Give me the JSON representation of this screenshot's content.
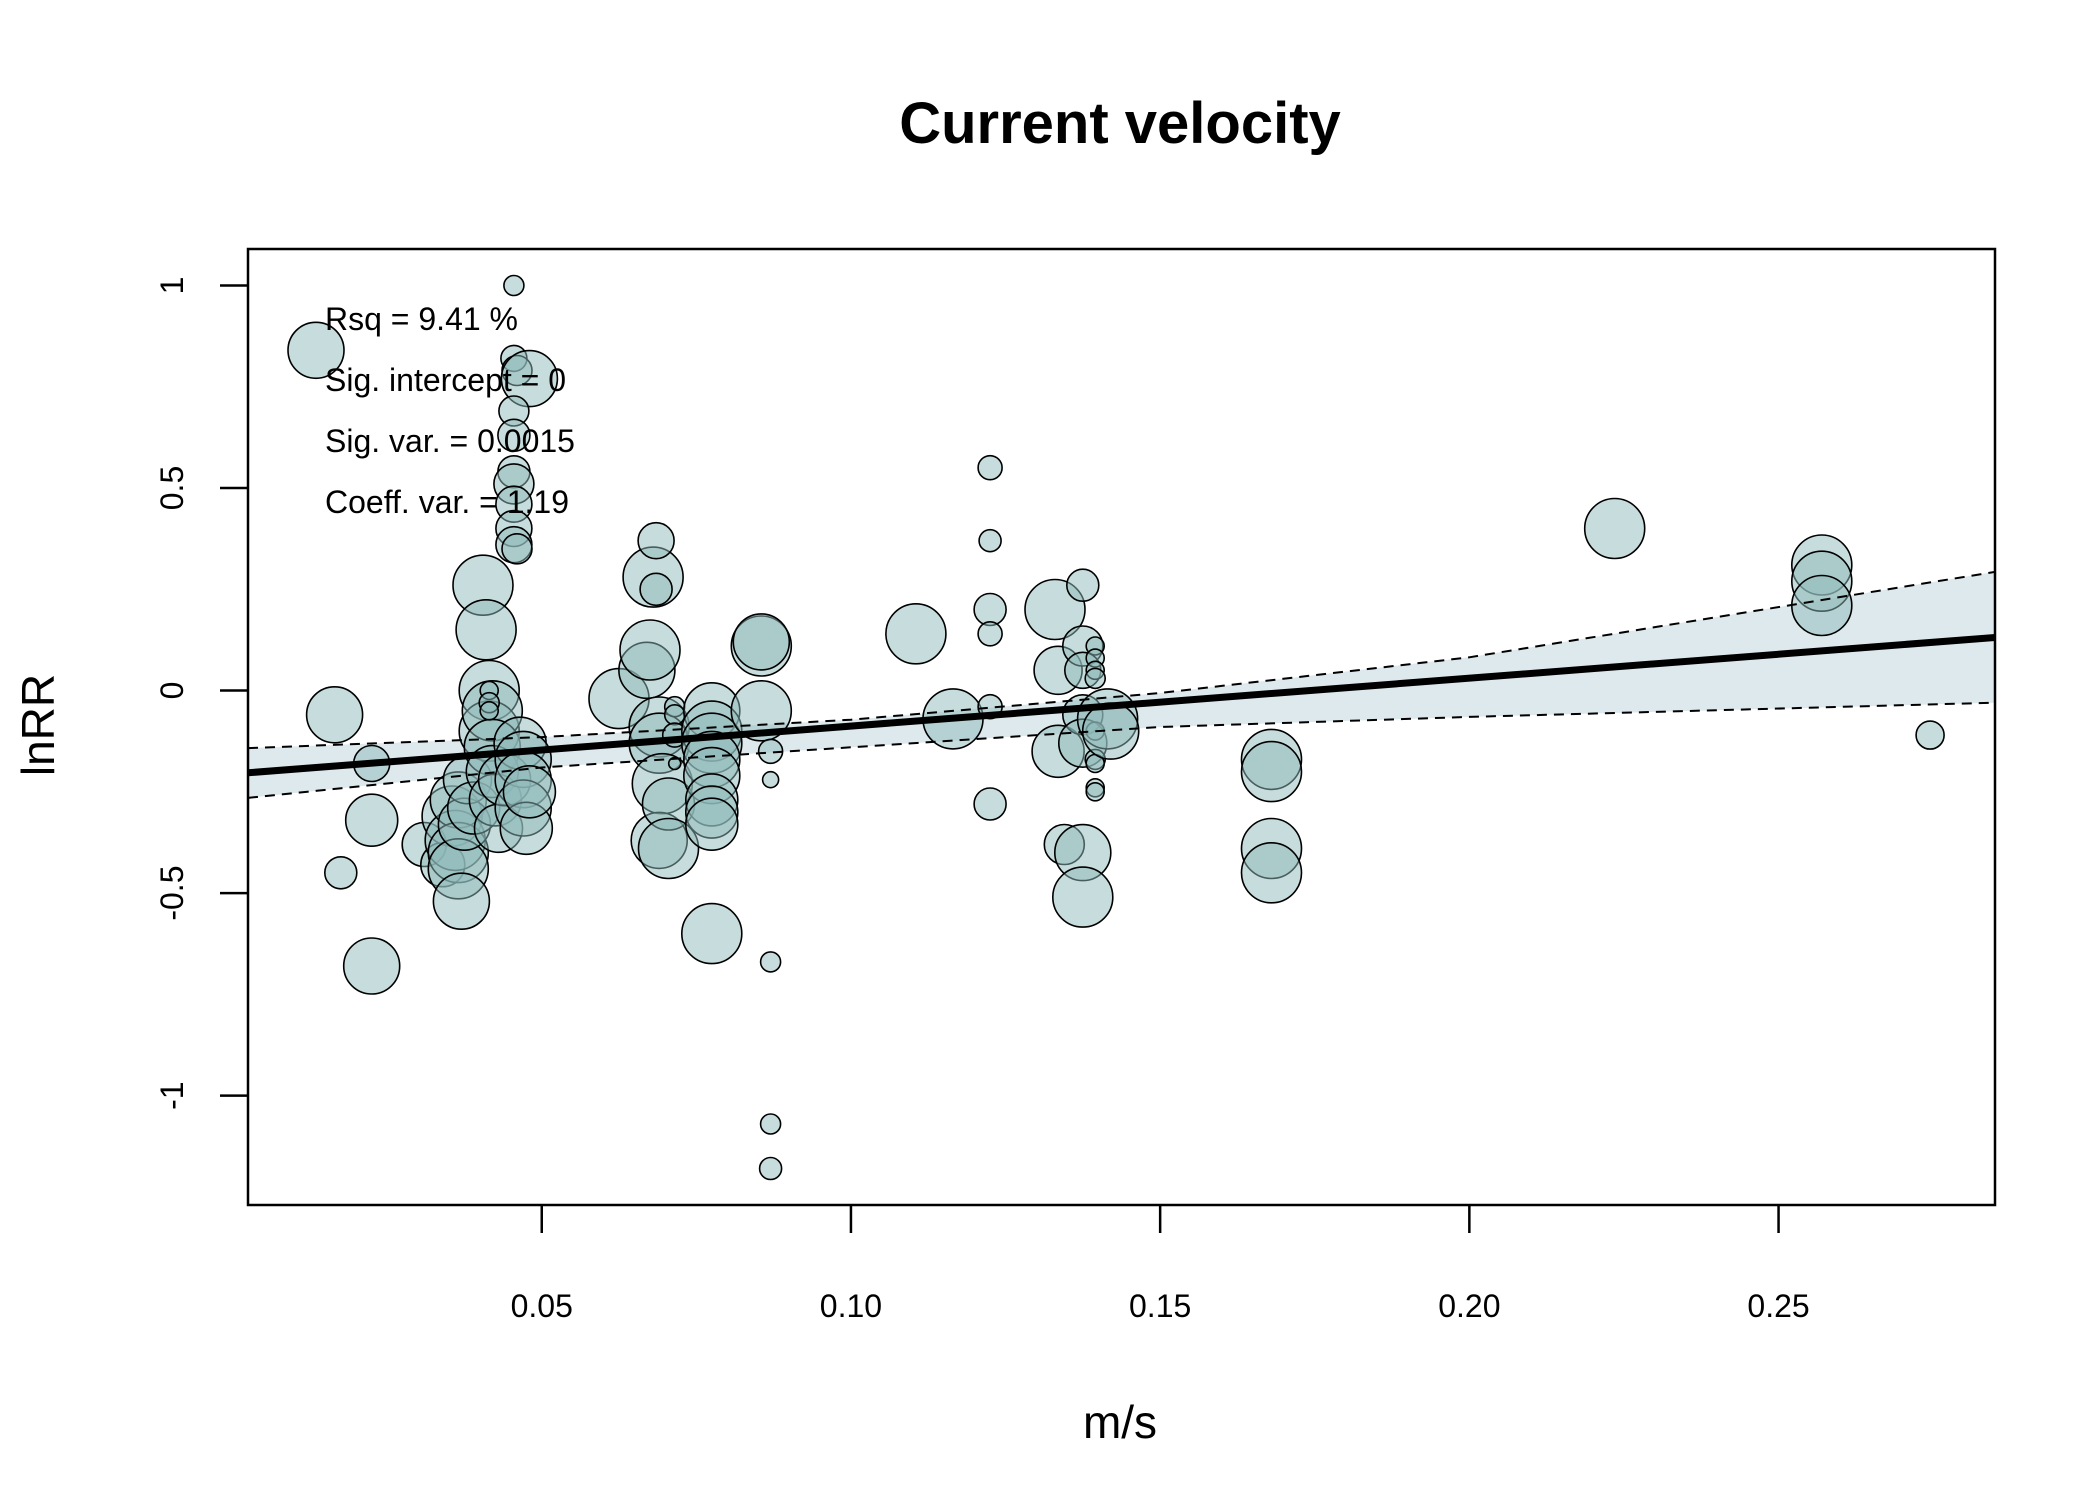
{
  "chart_data": {
    "type": "scatter",
    "title": "Current velocity",
    "xlabel": "m/s",
    "ylabel": "lnRR",
    "xlim": [
      0.0025,
      0.285
    ],
    "ylim": [
      -1.27,
      1.09
    ],
    "x_ticks": [
      0.05,
      0.1,
      0.15,
      0.2,
      0.25
    ],
    "x_tick_labels": [
      "0.05",
      "0.10",
      "0.15",
      "0.20",
      "0.25"
    ],
    "y_ticks": [
      -1,
      -0.5,
      0,
      0.5,
      1
    ],
    "y_tick_labels": [
      "-1",
      "-0.5",
      "0",
      "0.5",
      "1"
    ],
    "grid": false,
    "stats": [
      "Rsq = 9.41 %",
      "Sig. intercept = 0",
      "Sig. var. = 0.0015",
      "Coeff. var. = 1.19"
    ],
    "fit_line": {
      "x": [
        0.0025,
        0.285
      ],
      "y": [
        -0.203,
        0.131
      ]
    },
    "ci_upper": {
      "x": [
        0.0025,
        0.05,
        0.1,
        0.15,
        0.2,
        0.285
      ],
      "y": [
        -0.142,
        -0.115,
        -0.072,
        -0.006,
        0.082,
        0.293
      ]
    },
    "ci_lower": {
      "x": [
        0.0025,
        0.05,
        0.1,
        0.15,
        0.2,
        0.285
      ],
      "y": [
        -0.265,
        -0.19,
        -0.14,
        -0.09,
        -0.065,
        -0.03
      ]
    },
    "colors": {
      "point_fill": "#8fb9b9",
      "point_stroke": "#000000",
      "band_fill": "#dde9ec",
      "fit_line": "#000000"
    },
    "points": [
      {
        "x": 0.0135,
        "y": 0.84,
        "size": 28
      },
      {
        "x": 0.0165,
        "y": -0.06,
        "size": 28
      },
      {
        "x": 0.0175,
        "y": -0.45,
        "size": 16
      },
      {
        "x": 0.0225,
        "y": -0.18,
        "size": 18
      },
      {
        "x": 0.0225,
        "y": -0.32,
        "size": 26
      },
      {
        "x": 0.0225,
        "y": -0.68,
        "size": 28
      },
      {
        "x": 0.031,
        "y": -0.38,
        "size": 22
      },
      {
        "x": 0.034,
        "y": -0.43,
        "size": 22
      },
      {
        "x": 0.0355,
        "y": -0.31,
        "size": 30
      },
      {
        "x": 0.036,
        "y": -0.37,
        "size": 30
      },
      {
        "x": 0.0365,
        "y": -0.27,
        "size": 28
      },
      {
        "x": 0.0365,
        "y": -0.4,
        "size": 30
      },
      {
        "x": 0.0365,
        "y": -0.44,
        "size": 30
      },
      {
        "x": 0.037,
        "y": -0.52,
        "size": 28
      },
      {
        "x": 0.0375,
        "y": -0.33,
        "size": 26
      },
      {
        "x": 0.038,
        "y": -0.22,
        "size": 24
      },
      {
        "x": 0.039,
        "y": -0.29,
        "size": 26
      },
      {
        "x": 0.0405,
        "y": 0.26,
        "size": 30
      },
      {
        "x": 0.041,
        "y": 0.15,
        "size": 30
      },
      {
        "x": 0.0415,
        "y": 0.0,
        "size": 30
      },
      {
        "x": 0.0415,
        "y": -0.1,
        "size": 30
      },
      {
        "x": 0.042,
        "y": -0.05,
        "size": 30
      },
      {
        "x": 0.042,
        "y": -0.14,
        "size": 28
      },
      {
        "x": 0.042,
        "y": -0.2,
        "size": 26
      },
      {
        "x": 0.0425,
        "y": -0.27,
        "size": 26
      },
      {
        "x": 0.043,
        "y": -0.34,
        "size": 24
      },
      {
        "x": 0.044,
        "y": -0.22,
        "size": 26
      },
      {
        "x": 0.0415,
        "y": 0.0,
        "size": 9
      },
      {
        "x": 0.0415,
        "y": -0.03,
        "size": 10
      },
      {
        "x": 0.0415,
        "y": -0.05,
        "size": 9
      },
      {
        "x": 0.0455,
        "y": 1.0,
        "size": 10
      },
      {
        "x": 0.0455,
        "y": 0.82,
        "size": 13
      },
      {
        "x": 0.046,
        "y": 0.79,
        "size": 15
      },
      {
        "x": 0.048,
        "y": 0.77,
        "size": 28
      },
      {
        "x": 0.0455,
        "y": 0.69,
        "size": 15
      },
      {
        "x": 0.0455,
        "y": 0.63,
        "size": 16
      },
      {
        "x": 0.0455,
        "y": 0.54,
        "size": 16
      },
      {
        "x": 0.0455,
        "y": 0.51,
        "size": 20
      },
      {
        "x": 0.0455,
        "y": 0.46,
        "size": 18
      },
      {
        "x": 0.0455,
        "y": 0.4,
        "size": 18
      },
      {
        "x": 0.0455,
        "y": 0.36,
        "size": 18
      },
      {
        "x": 0.046,
        "y": 0.35,
        "size": 15
      },
      {
        "x": 0.0465,
        "y": -0.13,
        "size": 26
      },
      {
        "x": 0.047,
        "y": -0.17,
        "size": 28
      },
      {
        "x": 0.047,
        "y": -0.22,
        "size": 28
      },
      {
        "x": 0.047,
        "y": -0.29,
        "size": 28
      },
      {
        "x": 0.0475,
        "y": -0.34,
        "size": 26
      },
      {
        "x": 0.048,
        "y": -0.25,
        "size": 26
      },
      {
        "x": 0.0625,
        "y": -0.02,
        "size": 30
      },
      {
        "x": 0.067,
        "y": 0.05,
        "size": 28
      },
      {
        "x": 0.0675,
        "y": 0.1,
        "size": 30
      },
      {
        "x": 0.068,
        "y": 0.28,
        "size": 30
      },
      {
        "x": 0.0685,
        "y": 0.37,
        "size": 18
      },
      {
        "x": 0.0685,
        "y": 0.25,
        "size": 16
      },
      {
        "x": 0.069,
        "y": -0.09,
        "size": 30
      },
      {
        "x": 0.069,
        "y": -0.13,
        "size": 30
      },
      {
        "x": 0.0695,
        "y": -0.23,
        "size": 30
      },
      {
        "x": 0.069,
        "y": -0.37,
        "size": 28
      },
      {
        "x": 0.0705,
        "y": -0.28,
        "size": 26
      },
      {
        "x": 0.0705,
        "y": -0.39,
        "size": 30
      },
      {
        "x": 0.0715,
        "y": -0.04,
        "size": 10
      },
      {
        "x": 0.0715,
        "y": -0.06,
        "size": 10
      },
      {
        "x": 0.0715,
        "y": -0.11,
        "size": 12
      },
      {
        "x": 0.0715,
        "y": -0.18,
        "size": 6
      },
      {
        "x": 0.0775,
        "y": -0.05,
        "size": 28
      },
      {
        "x": 0.0775,
        "y": -0.1,
        "size": 30
      },
      {
        "x": 0.0775,
        "y": -0.13,
        "size": 30
      },
      {
        "x": 0.0775,
        "y": -0.17,
        "size": 28
      },
      {
        "x": 0.0775,
        "y": -0.21,
        "size": 28
      },
      {
        "x": 0.0775,
        "y": -0.27,
        "size": 26
      },
      {
        "x": 0.0775,
        "y": -0.3,
        "size": 26
      },
      {
        "x": 0.0775,
        "y": -0.33,
        "size": 26
      },
      {
        "x": 0.0775,
        "y": -0.6,
        "size": 30
      },
      {
        "x": 0.0855,
        "y": 0.11,
        "size": 30
      },
      {
        "x": 0.0855,
        "y": 0.12,
        "size": 28
      },
      {
        "x": 0.0855,
        "y": -0.05,
        "size": 30
      },
      {
        "x": 0.087,
        "y": -0.15,
        "size": 12
      },
      {
        "x": 0.087,
        "y": -0.22,
        "size": 8
      },
      {
        "x": 0.087,
        "y": -0.67,
        "size": 10
      },
      {
        "x": 0.087,
        "y": -1.07,
        "size": 10
      },
      {
        "x": 0.087,
        "y": -1.18,
        "size": 11
      },
      {
        "x": 0.1105,
        "y": 0.14,
        "size": 30
      },
      {
        "x": 0.1165,
        "y": -0.07,
        "size": 30
      },
      {
        "x": 0.1225,
        "y": 0.55,
        "size": 12
      },
      {
        "x": 0.1225,
        "y": 0.37,
        "size": 11
      },
      {
        "x": 0.1225,
        "y": 0.2,
        "size": 16
      },
      {
        "x": 0.1225,
        "y": 0.14,
        "size": 12
      },
      {
        "x": 0.1225,
        "y": -0.04,
        "size": 12
      },
      {
        "x": 0.1225,
        "y": -0.28,
        "size": 16
      },
      {
        "x": 0.133,
        "y": 0.2,
        "size": 30
      },
      {
        "x": 0.1335,
        "y": 0.05,
        "size": 24
      },
      {
        "x": 0.1335,
        "y": -0.15,
        "size": 26
      },
      {
        "x": 0.1345,
        "y": -0.38,
        "size": 20
      },
      {
        "x": 0.1375,
        "y": 0.26,
        "size": 16
      },
      {
        "x": 0.1375,
        "y": 0.11,
        "size": 20
      },
      {
        "x": 0.1375,
        "y": 0.05,
        "size": 18
      },
      {
        "x": 0.1375,
        "y": -0.06,
        "size": 20
      },
      {
        "x": 0.1375,
        "y": -0.13,
        "size": 24
      },
      {
        "x": 0.1375,
        "y": -0.4,
        "size": 28
      },
      {
        "x": 0.1375,
        "y": -0.51,
        "size": 30
      },
      {
        "x": 0.1395,
        "y": 0.11,
        "size": 9
      },
      {
        "x": 0.1395,
        "y": 0.08,
        "size": 9
      },
      {
        "x": 0.1395,
        "y": 0.05,
        "size": 9
      },
      {
        "x": 0.1395,
        "y": 0.03,
        "size": 10
      },
      {
        "x": 0.1395,
        "y": -0.1,
        "size": 9
      },
      {
        "x": 0.1395,
        "y": -0.17,
        "size": 10
      },
      {
        "x": 0.1395,
        "y": -0.18,
        "size": 9
      },
      {
        "x": 0.1395,
        "y": -0.24,
        "size": 9
      },
      {
        "x": 0.1395,
        "y": -0.25,
        "size": 9
      },
      {
        "x": 0.1415,
        "y": -0.07,
        "size": 30
      },
      {
        "x": 0.142,
        "y": -0.1,
        "size": 28
      },
      {
        "x": 0.168,
        "y": -0.17,
        "size": 30
      },
      {
        "x": 0.168,
        "y": -0.2,
        "size": 30
      },
      {
        "x": 0.168,
        "y": -0.39,
        "size": 30
      },
      {
        "x": 0.168,
        "y": -0.45,
        "size": 30
      },
      {
        "x": 0.2235,
        "y": 0.4,
        "size": 30
      },
      {
        "x": 0.257,
        "y": 0.31,
        "size": 30
      },
      {
        "x": 0.257,
        "y": 0.27,
        "size": 30
      },
      {
        "x": 0.257,
        "y": 0.21,
        "size": 30
      },
      {
        "x": 0.2745,
        "y": -0.11,
        "size": 14
      }
    ]
  }
}
